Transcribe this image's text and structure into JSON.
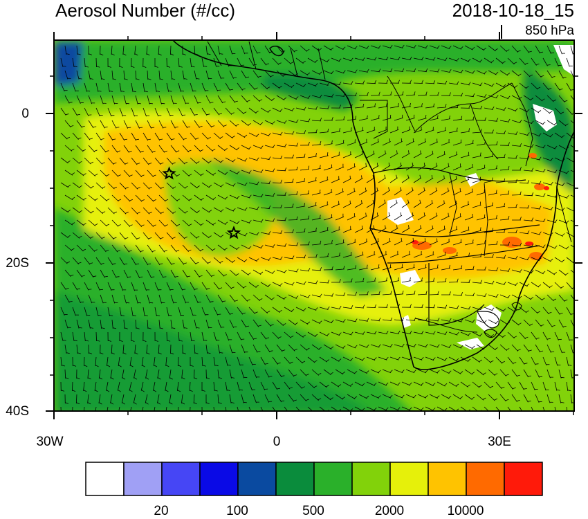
{
  "title": "Aerosol Number (#/cc)",
  "time": "2018-10-18_15",
  "level": "850 hPa",
  "y_axis_labels": [
    "0",
    "20S",
    "40S"
  ],
  "x_axis_labels": [
    "30W",
    "0",
    "30E"
  ],
  "colorbar": {
    "colors": [
      "#ffffff",
      "#a0a0f5",
      "#4646f5",
      "#0a0ae6",
      "#0a4aa0",
      "#0a8c3c",
      "#2ab02a",
      "#82d20a",
      "#e6f00a",
      "#ffc300",
      "#ff6a00",
      "#ff1a0a"
    ],
    "labels": [
      "20",
      "100",
      "500",
      "2000",
      "10000"
    ]
  },
  "markers": [
    {
      "name": "star",
      "lon": -14.5,
      "lat": -8
    },
    {
      "name": "star",
      "lon": -5.8,
      "lat": -16
    }
  ]
}
